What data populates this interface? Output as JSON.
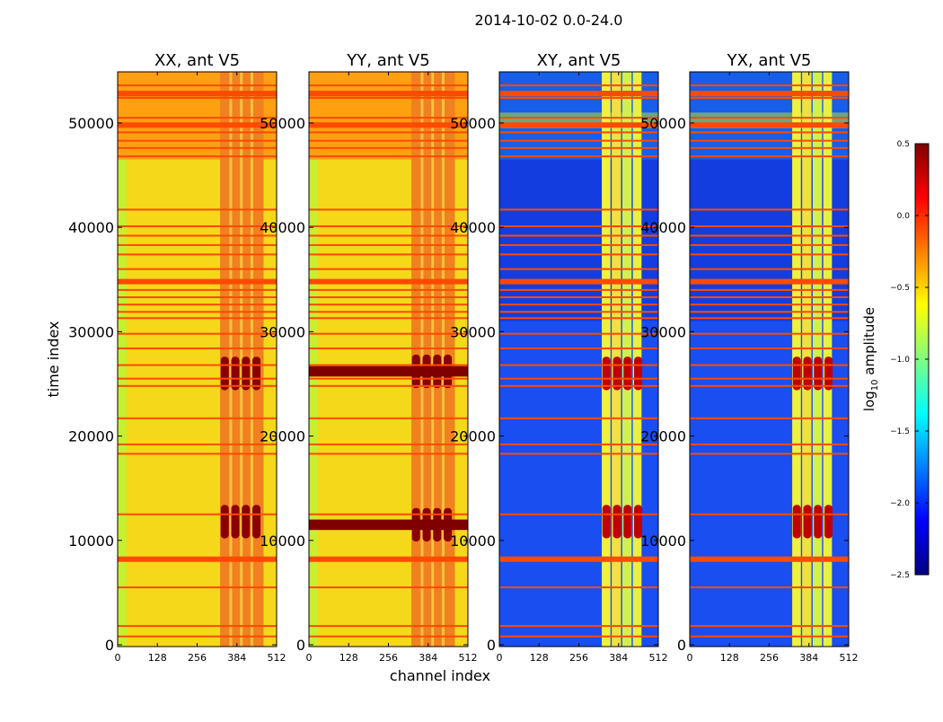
{
  "chart_data": {
    "type": "heatmap",
    "title": "2014-10-02 0.0-24.0",
    "xlabel": "channel index",
    "ylabel": "time index",
    "xlim": [
      0,
      512
    ],
    "ylim": [
      0,
      54900
    ],
    "xticks": [
      0,
      128,
      256,
      384,
      512
    ],
    "yticks": [
      0,
      10000,
      20000,
      30000,
      40000,
      50000
    ],
    "panels": [
      {
        "title": "XX, ant V5",
        "kind": "auto",
        "bright_blocks": [
          11800,
          26000
        ]
      },
      {
        "title": "YY, ant V5",
        "kind": "auto",
        "bright_blocks": [
          11500,
          26200
        ]
      },
      {
        "title": "XY, ant V5",
        "kind": "cross",
        "bright_blocks": [
          11800,
          26000
        ]
      },
      {
        "title": "YX, ant V5",
        "kind": "cross",
        "bright_blocks": [
          11800,
          26000
        ]
      }
    ],
    "strong_channel_range": [
      330,
      470
    ],
    "flagged_time_indices": [
      800,
      1800,
      5500,
      8200,
      12500,
      18300,
      19200,
      21700,
      24800,
      25500,
      26800,
      28400,
      29800,
      31300,
      31900,
      32600,
      33300,
      34000,
      34800,
      36000,
      37400,
      38300,
      39200,
      40100,
      41700,
      46800,
      47600,
      48300,
      49100,
      49800,
      50500,
      52400,
      53000,
      53600
    ],
    "thick_flagged_time_indices": [
      8200,
      34800,
      49800,
      52800
    ],
    "colorbar": {
      "label": "log10 amplitude",
      "range": [
        -2.5,
        0.5
      ],
      "ticks": [
        "0.5",
        "0.0",
        "−0.5",
        "−1.0",
        "−1.5",
        "−2.0",
        "−2.5"
      ],
      "colormap": "jet"
    }
  }
}
